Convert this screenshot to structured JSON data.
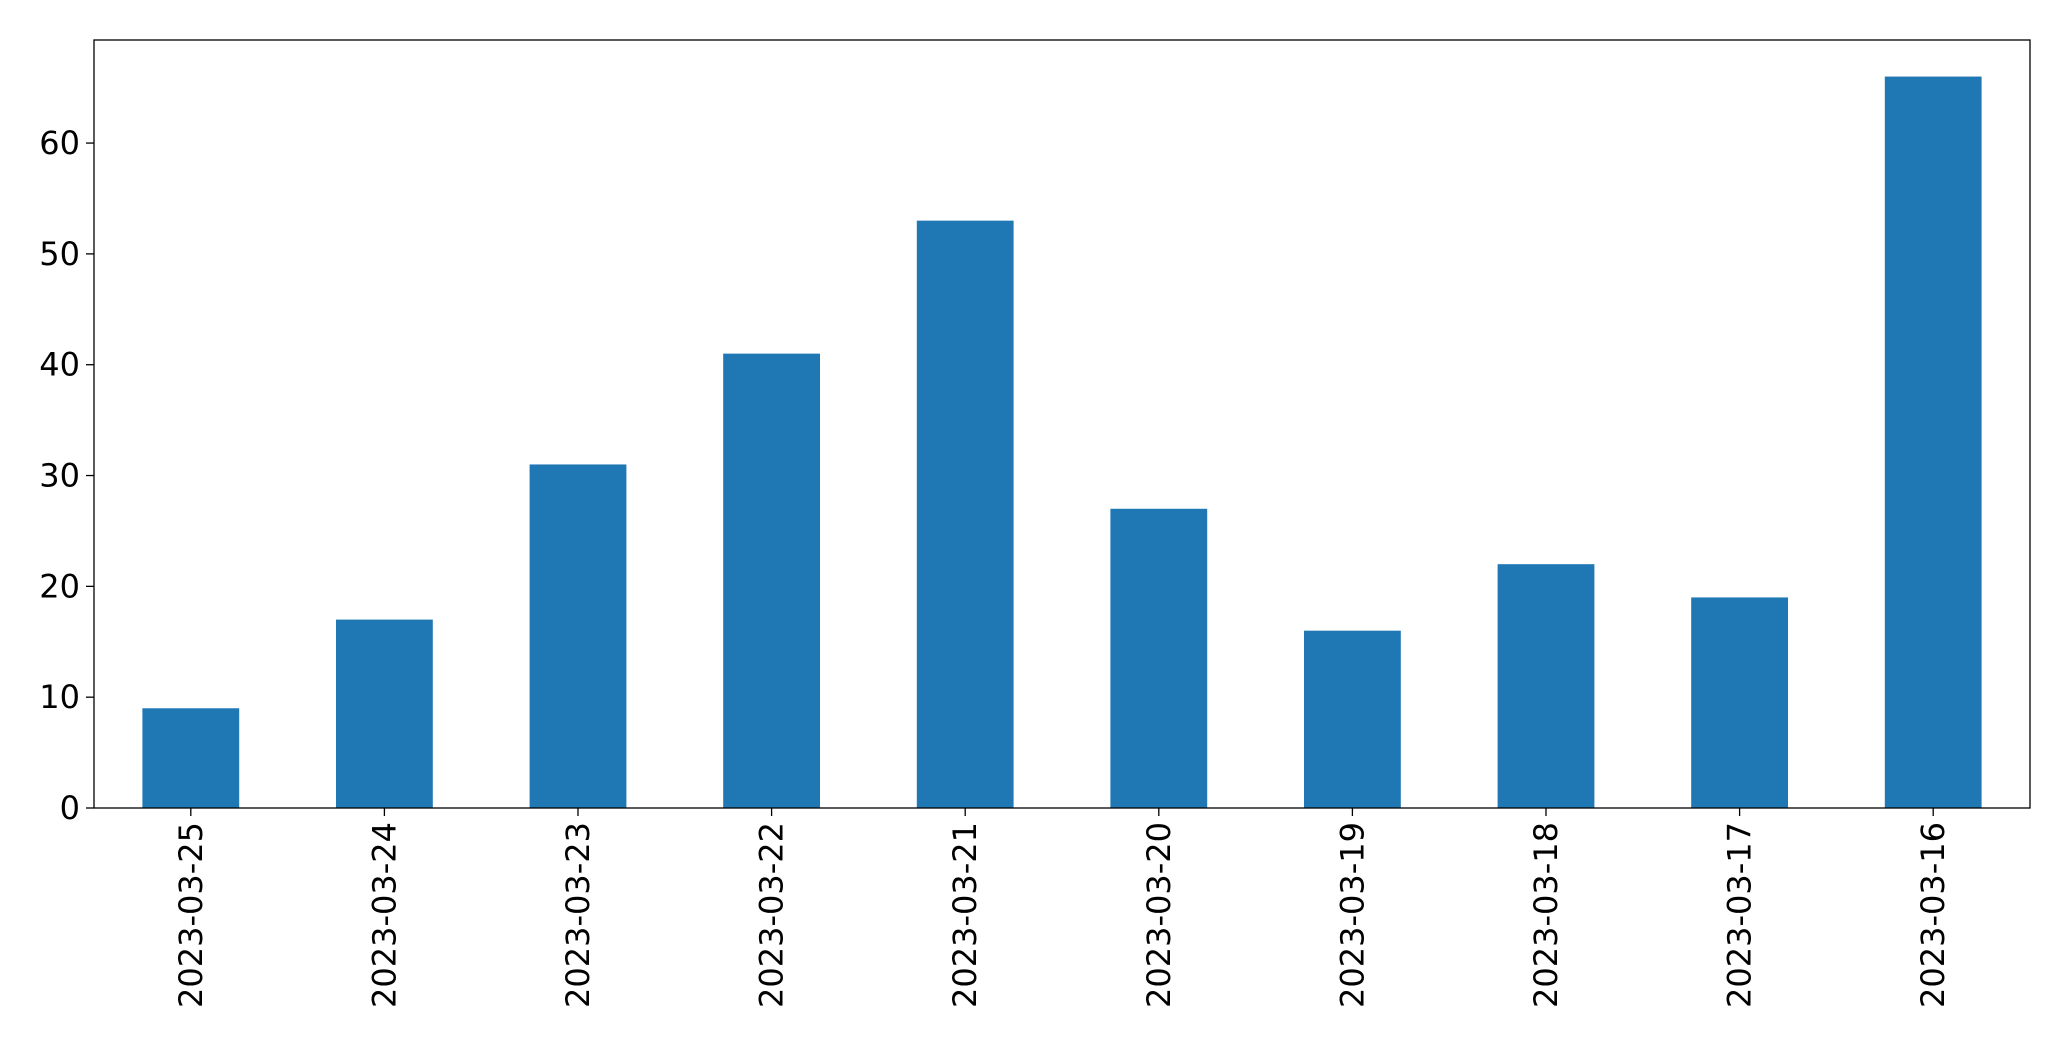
{
  "chart_data": {
    "type": "bar",
    "categories": [
      "2023-03-25",
      "2023-03-24",
      "2023-03-23",
      "2023-03-22",
      "2023-03-21",
      "2023-03-20",
      "2023-03-19",
      "2023-03-18",
      "2023-03-17",
      "2023-03-16"
    ],
    "values": [
      9,
      17,
      31,
      41,
      53,
      27,
      16,
      22,
      19,
      66
    ],
    "color": "#1f77b4",
    "ylim": [
      0,
      69.3
    ],
    "yticks": [
      0,
      10,
      20,
      30,
      40,
      50,
      60
    ],
    "grid": false
  }
}
